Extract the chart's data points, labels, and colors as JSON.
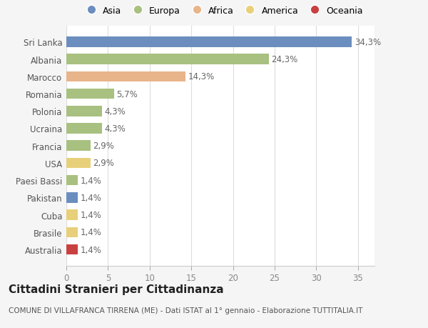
{
  "countries": [
    "Australia",
    "Brasile",
    "Cuba",
    "Pakistan",
    "Paesi Bassi",
    "USA",
    "Francia",
    "Ucraina",
    "Polonia",
    "Romania",
    "Marocco",
    "Albania",
    "Sri Lanka"
  ],
  "values": [
    1.4,
    1.4,
    1.4,
    1.4,
    1.4,
    2.9,
    2.9,
    4.3,
    4.3,
    5.7,
    14.3,
    24.3,
    34.3
  ],
  "labels": [
    "1,4%",
    "1,4%",
    "1,4%",
    "1,4%",
    "1,4%",
    "2,9%",
    "2,9%",
    "4,3%",
    "4,3%",
    "5,7%",
    "14,3%",
    "24,3%",
    "34,3%"
  ],
  "continents": [
    "Oceania",
    "America",
    "America",
    "Asia",
    "Europa",
    "America",
    "Europa",
    "Europa",
    "Europa",
    "Europa",
    "Africa",
    "Europa",
    "Asia"
  ],
  "continent_colors": {
    "Asia": "#6b8ebf",
    "Europa": "#a8c080",
    "Africa": "#e8b48a",
    "America": "#e8d07a",
    "Oceania": "#c94040"
  },
  "legend_order": [
    "Asia",
    "Europa",
    "Africa",
    "America",
    "Oceania"
  ],
  "background_color": "#f5f5f5",
  "plot_bg_color": "#ffffff",
  "title": "Cittadini Stranieri per Cittadinanza",
  "subtitle": "COMUNE DI VILLAFRANCA TIRRENA (ME) - Dati ISTAT al 1° gennaio - Elaborazione TUTTITALIA.IT",
  "xlim": [
    0,
    37
  ],
  "xticks": [
    0,
    5,
    10,
    15,
    20,
    25,
    30,
    35
  ],
  "grid_color": "#dddddd",
  "bar_height": 0.6,
  "label_fontsize": 8.5,
  "tick_fontsize": 8.5,
  "title_fontsize": 11,
  "subtitle_fontsize": 7.5
}
